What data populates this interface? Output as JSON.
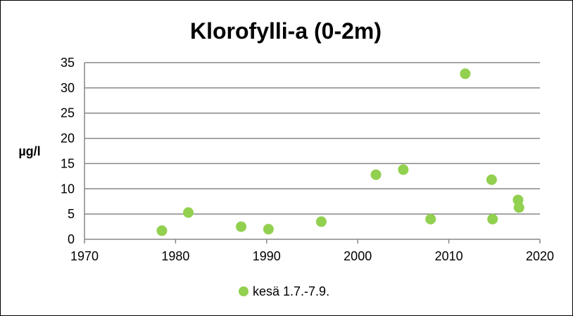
{
  "chart_data": {
    "type": "scatter",
    "title": "Klorofylli-a (0-2m)",
    "xlabel": "",
    "ylabel": "µg/l",
    "xlim": [
      1970,
      2020
    ],
    "ylim": [
      0,
      35
    ],
    "xticks": [
      1970,
      1980,
      1990,
      2000,
      2010,
      2020
    ],
    "yticks": [
      0,
      5,
      10,
      15,
      20,
      25,
      30,
      35
    ],
    "grid": true,
    "legend_position": "bottom",
    "series": [
      {
        "name": "kesä 1.7.-7.9.",
        "color": "#92D050",
        "points": [
          {
            "x": 1978.5,
            "y": 1.7
          },
          {
            "x": 1981.4,
            "y": 5.3
          },
          {
            "x": 1987.2,
            "y": 2.5
          },
          {
            "x": 1990.2,
            "y": 2.0
          },
          {
            "x": 1996.0,
            "y": 3.5
          },
          {
            "x": 2002.0,
            "y": 12.8
          },
          {
            "x": 2005.0,
            "y": 13.8
          },
          {
            "x": 2008.0,
            "y": 4.0
          },
          {
            "x": 2011.8,
            "y": 32.8
          },
          {
            "x": 2014.7,
            "y": 11.8
          },
          {
            "x": 2014.8,
            "y": 4.0
          },
          {
            "x": 2017.6,
            "y": 7.8
          },
          {
            "x": 2017.7,
            "y": 6.3
          }
        ]
      }
    ]
  }
}
